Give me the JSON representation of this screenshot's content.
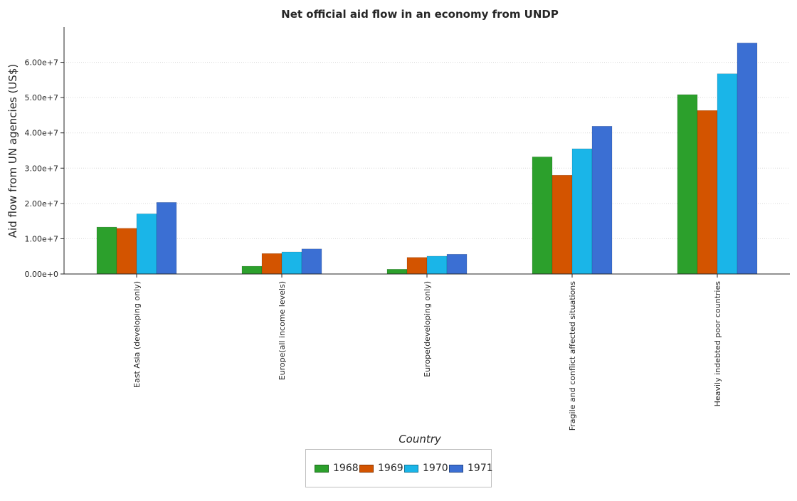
{
  "title": "Net official aid flow in an economy from UNDP",
  "chart_data": {
    "type": "bar",
    "title": "Net official aid flow in an economy from UNDP",
    "xlabel": "Country",
    "ylabel": "Aid flow from UN agencies (US$)",
    "categories": [
      "East Asia (developing only)",
      "Europe(all income levels)",
      "Europe(developing only)",
      "Fragile and conflict affected situations",
      "Heavily indebted poor countries"
    ],
    "series": [
      {
        "name": "1968",
        "color": "#2ca02c",
        "values": [
          13300000,
          2200000,
          1350000,
          33200000,
          50850000
        ]
      },
      {
        "name": "1969",
        "color": "#d35400",
        "values": [
          12950000,
          5800000,
          4700000,
          28000000,
          46350000
        ]
      },
      {
        "name": "1970",
        "color": "#1ab5e8",
        "values": [
          17050000,
          6250000,
          5050000,
          35500000,
          56750000
        ]
      },
      {
        "name": "1971",
        "color": "#3b6fd3",
        "values": [
          20300000,
          7100000,
          5600000,
          41900000,
          65500000
        ]
      }
    ],
    "ylim": [
      0,
      70000000
    ],
    "yticks": [
      0,
      10000000,
      20000000,
      30000000,
      40000000,
      50000000,
      60000000
    ],
    "ytick_labels": [
      "0.00e+0",
      "1.00e+7",
      "2.00e+7",
      "3.00e+7",
      "4.00e+7",
      "5.00e+7",
      "6.00e+7"
    ],
    "grid": true,
    "legend_position": "bottom-center"
  }
}
